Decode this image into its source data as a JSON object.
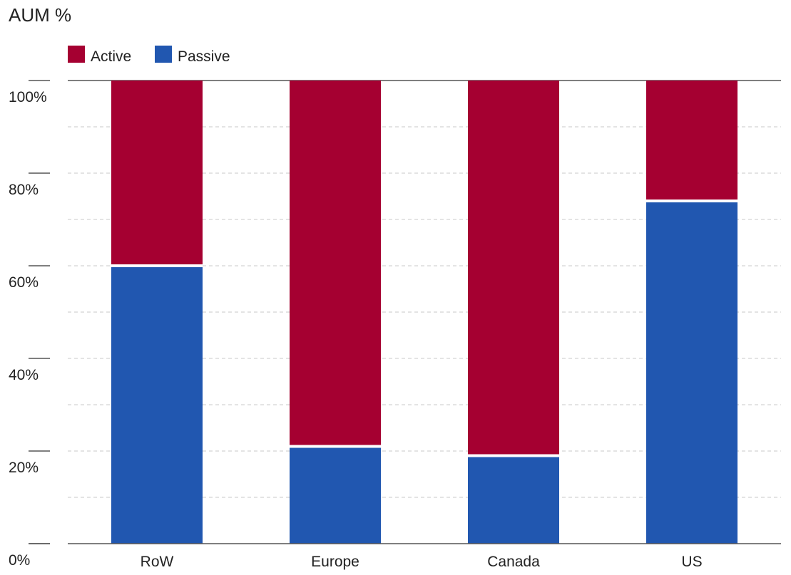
{
  "chart_data": {
    "type": "bar",
    "stacked": true,
    "percent_stacked": true,
    "title": "AUM %",
    "xlabel": "",
    "ylabel": "AUM %",
    "categories": [
      "RoW",
      "Europe",
      "Canada",
      "US"
    ],
    "series": [
      {
        "name": "Passive",
        "color": "#2157b0",
        "values": [
          60,
          21,
          19,
          74
        ]
      },
      {
        "name": "Active",
        "color": "#a50031",
        "values": [
          40,
          79,
          81,
          26
        ]
      }
    ],
    "legend_order": [
      "Active",
      "Passive"
    ],
    "legend_position": "top-left",
    "ylim": [
      0,
      100
    ],
    "yticks": [
      0,
      20,
      40,
      60,
      80,
      100
    ],
    "ytick_labels": [
      "0%",
      "20%",
      "40%",
      "60%",
      "80%",
      "100%"
    ],
    "grid": true
  }
}
